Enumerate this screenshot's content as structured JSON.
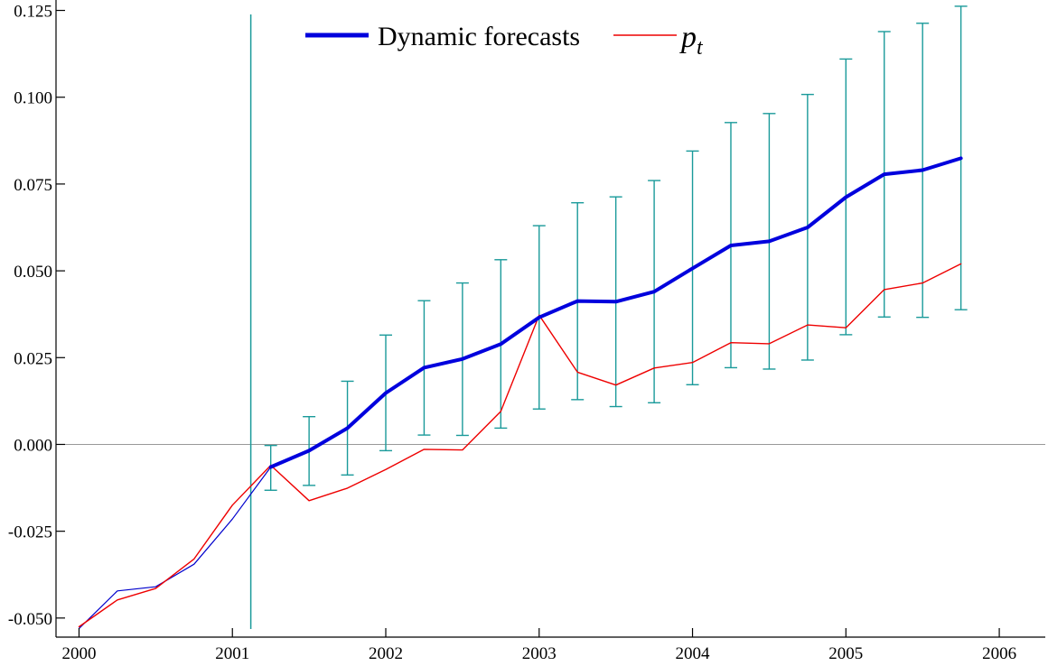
{
  "chart_data": {
    "type": "line",
    "title": "",
    "xlabel": "",
    "ylabel": "",
    "xlim": [
      1999.85,
      2006.3
    ],
    "ylim": [
      -0.0555,
      0.128
    ],
    "x_ticks": [
      2000,
      2001,
      2002,
      2003,
      2004,
      2005,
      2006
    ],
    "x_tick_labels": [
      "2000",
      "2001",
      "2002",
      "2003",
      "2004",
      "2005",
      "2006"
    ],
    "y_ticks": [
      -0.05,
      -0.025,
      0.0,
      0.025,
      0.05,
      0.075,
      0.1,
      0.125
    ],
    "y_tick_labels": [
      "-0.050",
      "-0.025",
      "0.000",
      "0.025",
      "0.050",
      "0.075",
      "0.100",
      "0.125"
    ],
    "grid": false,
    "zero_line": true,
    "forecast_start_marker_x": 2001.12,
    "legend": {
      "placement": "top-center",
      "entries": [
        {
          "label": "Dynamic forecasts",
          "series": "forecast"
        },
        {
          "label": "p",
          "subscript": "t",
          "series": "actual"
        }
      ]
    },
    "colors": {
      "forecast": "#0000dd",
      "actual": "#ee0000",
      "error_bars": "#1a9a9a",
      "zero_line": "#999999",
      "history": "#0000cc"
    },
    "series": [
      {
        "name": "Dynamic forecasts",
        "role": "forecast",
        "x": [
          2001.25,
          2001.5,
          2001.75,
          2002.0,
          2002.25,
          2002.5,
          2002.75,
          2003.0,
          2003.25,
          2003.5,
          2003.75,
          2004.0,
          2004.25,
          2004.5,
          2004.75,
          2005.0,
          2005.25,
          2005.5,
          2005.75
        ],
        "values": [
          -0.0065,
          -0.0018,
          0.0047,
          0.0148,
          0.0221,
          0.0246,
          0.0289,
          0.0366,
          0.0413,
          0.0411,
          0.044,
          0.0507,
          0.0573,
          0.0585,
          0.0625,
          0.0712,
          0.0778,
          0.079,
          0.0824
        ],
        "lower": [
          -0.0132,
          -0.0118,
          -0.0088,
          -0.0018,
          0.0027,
          0.0026,
          0.0047,
          0.0102,
          0.0129,
          0.0109,
          0.012,
          0.0172,
          0.0221,
          0.0217,
          0.0243,
          0.0316,
          0.0367,
          0.0366,
          0.0388
        ],
        "upper": [
          -0.0003,
          0.008,
          0.0182,
          0.0315,
          0.0414,
          0.0465,
          0.0532,
          0.063,
          0.0696,
          0.0713,
          0.076,
          0.0845,
          0.0927,
          0.0953,
          0.1008,
          0.111,
          0.1189,
          0.1213,
          0.1262
        ]
      },
      {
        "name": "p_t",
        "role": "actual",
        "x": [
          2000.0,
          2000.25,
          2000.5,
          2000.75,
          2001.0,
          2001.25,
          2001.5,
          2001.75,
          2002.0,
          2002.25,
          2002.5,
          2002.75,
          2003.0,
          2003.25,
          2003.5,
          2003.75,
          2004.0,
          2004.25,
          2004.5,
          2004.75,
          2005.0,
          2005.25,
          2005.5,
          2005.75
        ],
        "values": [
          -0.0525,
          -0.0448,
          -0.0415,
          -0.033,
          -0.0175,
          -0.006,
          -0.0162,
          -0.0126,
          -0.0072,
          -0.0014,
          -0.0016,
          0.0095,
          0.0372,
          0.0208,
          0.0171,
          0.022,
          0.0236,
          0.0293,
          0.029,
          0.0344,
          0.0336,
          0.0446,
          0.0465,
          0.052
        ]
      },
      {
        "role": "history",
        "x": [
          2000.0,
          2000.25,
          2000.5,
          2000.75,
          2001.0,
          2001.25
        ],
        "values": [
          -0.053,
          -0.0422,
          -0.041,
          -0.0345,
          -0.0215,
          -0.0065
        ]
      }
    ]
  }
}
